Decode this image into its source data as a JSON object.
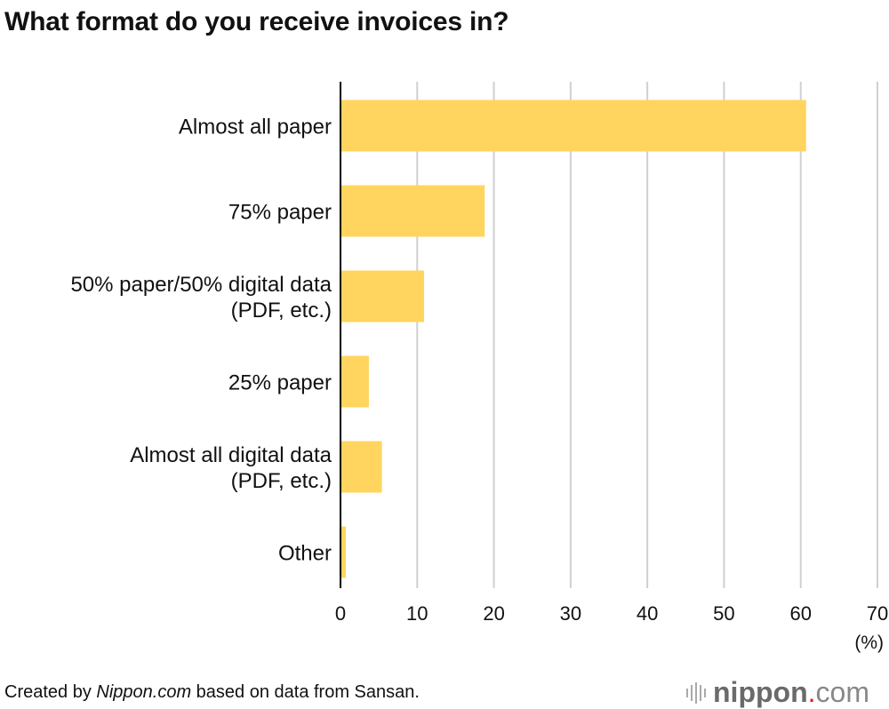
{
  "chart_data": {
    "type": "bar",
    "orientation": "horizontal",
    "title": "What format do you receive invoices in?",
    "categories": [
      "Almost all paper",
      "75% paper",
      "50% paper/50% digital data (PDF, etc.)",
      "25% paper",
      "Almost all digital data (PDF, etc.)",
      "Other"
    ],
    "category_lines": [
      [
        "Almost all paper"
      ],
      [
        "75% paper"
      ],
      [
        "50% paper/50% digital data",
        "(PDF, etc.)"
      ],
      [
        "25% paper"
      ],
      [
        "Almost all digital data",
        "(PDF, etc.)"
      ],
      [
        "Other"
      ]
    ],
    "values": [
      60.7,
      18.8,
      10.9,
      3.7,
      5.4,
      0.7
    ],
    "xlim": [
      0,
      70
    ],
    "xticks": [
      0,
      10,
      20,
      30,
      40,
      50,
      60,
      70
    ],
    "xlabel": "(%)",
    "grid": true,
    "bar_color": "#ffd55f",
    "grid_color": "#d0d0d0"
  },
  "footer": {
    "credit_prefix": "Created by ",
    "credit_source": "Nippon.com",
    "credit_suffix": " based on data from Sansan.",
    "logo_name": "nippon",
    "logo_dot": ".",
    "logo_tld": "com"
  }
}
